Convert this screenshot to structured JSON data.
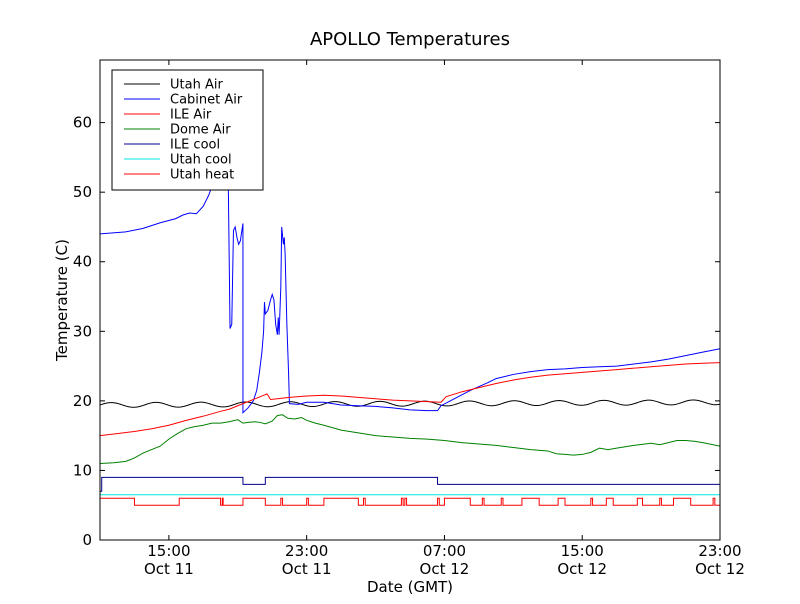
{
  "chart_data": {
    "type": "line",
    "title": "APOLLO Temperatures",
    "xlabel": "Date (GMT)",
    "ylabel": "Temperature (C)",
    "x_unit": "hours since Oct 11 11:00 GMT",
    "xlim": [
      0,
      36
    ],
    "ylim": [
      0,
      69
    ],
    "yticks": [
      0,
      10,
      20,
      30,
      40,
      50,
      60
    ],
    "xticks": [
      {
        "x": 4,
        "line1": "15:00",
        "line2": "Oct 11"
      },
      {
        "x": 12,
        "line1": "23:00",
        "line2": "Oct 11"
      },
      {
        "x": 20,
        "line1": "07:00",
        "line2": "Oct 12"
      },
      {
        "x": 28,
        "line1": "15:00",
        "line2": "Oct 12"
      },
      {
        "x": 36,
        "line1": "23:00",
        "line2": "Oct 12"
      }
    ],
    "grid": false,
    "legend_position": "top-left",
    "series": [
      {
        "name": "Utah Air",
        "color": "#000000",
        "kind": "wave",
        "base": 19.6,
        "amp": 0.35,
        "period": 2.6,
        "points": [
          [
            0,
            19.2
          ],
          [
            36,
            20.0
          ]
        ]
      },
      {
        "name": "Cabinet Air",
        "color": "#0000ff",
        "points": [
          [
            0,
            44.0
          ],
          [
            1.5,
            44.3
          ],
          [
            2.5,
            44.8
          ],
          [
            3.5,
            45.6
          ],
          [
            4.4,
            46.2
          ],
          [
            4.8,
            46.7
          ],
          [
            5.2,
            47.0
          ],
          [
            5.6,
            46.9
          ],
          [
            6.0,
            48.0
          ],
          [
            6.3,
            49.5
          ],
          [
            6.6,
            51.5
          ],
          [
            6.9,
            52.0
          ],
          [
            7.0,
            53.0
          ],
          [
            7.1,
            50.5
          ],
          [
            7.3,
            51.0
          ],
          [
            7.45,
            51.0
          ],
          [
            7.55,
            30.4
          ],
          [
            7.65,
            31.0
          ],
          [
            7.75,
            44.5
          ],
          [
            7.85,
            45.0
          ],
          [
            7.95,
            43.5
          ],
          [
            8.05,
            42.5
          ],
          [
            8.15,
            43.0
          ],
          [
            8.3,
            45.5
          ],
          [
            8.3,
            18.3
          ],
          [
            8.6,
            19.0
          ],
          [
            8.9,
            20.0
          ],
          [
            9.1,
            21.5
          ],
          [
            9.25,
            24.0
          ],
          [
            9.4,
            27.0
          ],
          [
            9.5,
            30.0
          ],
          [
            9.55,
            34.2
          ],
          [
            9.6,
            32.5
          ],
          [
            9.75,
            33.0
          ],
          [
            9.9,
            34.5
          ],
          [
            10.0,
            35.3
          ],
          [
            10.1,
            34.5
          ],
          [
            10.2,
            31.0
          ],
          [
            10.3,
            29.5
          ],
          [
            10.35,
            32.0
          ],
          [
            10.4,
            29.5
          ],
          [
            10.5,
            36.5
          ],
          [
            10.55,
            45.0
          ],
          [
            10.65,
            42.5
          ],
          [
            10.7,
            43.5
          ],
          [
            10.75,
            41.0
          ],
          [
            10.85,
            31.0
          ],
          [
            10.95,
            24.0
          ],
          [
            11.0,
            19.6
          ],
          [
            11.5,
            19.5
          ],
          [
            12.0,
            19.8
          ],
          [
            13.0,
            19.8
          ],
          [
            14.0,
            19.4
          ],
          [
            15.0,
            19.3
          ],
          [
            16.0,
            19.2
          ],
          [
            17.0,
            19.0
          ],
          [
            18.0,
            18.7
          ],
          [
            19.0,
            18.6
          ],
          [
            19.6,
            18.6
          ],
          [
            19.8,
            19.3
          ],
          [
            20.5,
            20.2
          ],
          [
            21.5,
            21.5
          ],
          [
            22.5,
            22.6
          ],
          [
            23.0,
            23.2
          ],
          [
            24.0,
            23.8
          ],
          [
            25.0,
            24.2
          ],
          [
            26.0,
            24.5
          ],
          [
            27.0,
            24.6
          ],
          [
            28.0,
            24.8
          ],
          [
            29.0,
            24.9
          ],
          [
            30.0,
            25.0
          ],
          [
            31.0,
            25.3
          ],
          [
            32.0,
            25.6
          ],
          [
            33.0,
            26.0
          ],
          [
            34.0,
            26.5
          ],
          [
            35.0,
            27.0
          ],
          [
            36.0,
            27.5
          ]
        ]
      },
      {
        "name": "ILE Air",
        "color": "#ff0000",
        "points": [
          [
            0,
            15.0
          ],
          [
            1.0,
            15.3
          ],
          [
            2.0,
            15.6
          ],
          [
            3.0,
            16.0
          ],
          [
            4.0,
            16.5
          ],
          [
            5.0,
            17.2
          ],
          [
            6.0,
            17.8
          ],
          [
            7.0,
            18.5
          ],
          [
            7.5,
            18.8
          ],
          [
            8.0,
            19.3
          ],
          [
            8.5,
            19.8
          ],
          [
            9.0,
            20.3
          ],
          [
            9.5,
            20.8
          ],
          [
            9.7,
            21.0
          ],
          [
            9.9,
            20.2
          ],
          [
            10.3,
            20.3
          ],
          [
            11.0,
            20.5
          ],
          [
            12.0,
            20.7
          ],
          [
            13.0,
            20.8
          ],
          [
            14.0,
            20.7
          ],
          [
            15.0,
            20.5
          ],
          [
            16.0,
            20.3
          ],
          [
            17.0,
            20.1
          ],
          [
            18.0,
            20.0
          ],
          [
            19.0,
            19.9
          ],
          [
            19.8,
            19.8
          ],
          [
            20.1,
            20.6
          ],
          [
            21.0,
            21.3
          ],
          [
            22.0,
            21.9
          ],
          [
            23.0,
            22.5
          ],
          [
            24.0,
            23.0
          ],
          [
            25.0,
            23.4
          ],
          [
            26.0,
            23.7
          ],
          [
            27.0,
            23.9
          ],
          [
            28.0,
            24.1
          ],
          [
            29.0,
            24.3
          ],
          [
            30.0,
            24.5
          ],
          [
            31.0,
            24.7
          ],
          [
            32.0,
            24.9
          ],
          [
            33.0,
            25.1
          ],
          [
            34.0,
            25.3
          ],
          [
            35.0,
            25.4
          ],
          [
            36.0,
            25.5
          ]
        ]
      },
      {
        "name": "Dome Air",
        "color": "#008000",
        "points": [
          [
            0,
            11.0
          ],
          [
            0.8,
            11.1
          ],
          [
            1.5,
            11.3
          ],
          [
            2.0,
            11.8
          ],
          [
            2.5,
            12.5
          ],
          [
            3.0,
            13.0
          ],
          [
            3.5,
            13.5
          ],
          [
            4.0,
            14.5
          ],
          [
            4.5,
            15.3
          ],
          [
            5.0,
            16.0
          ],
          [
            5.5,
            16.3
          ],
          [
            6.0,
            16.5
          ],
          [
            6.5,
            16.8
          ],
          [
            7.0,
            16.8
          ],
          [
            7.5,
            17.0
          ],
          [
            8.0,
            17.3
          ],
          [
            8.3,
            16.8
          ],
          [
            8.6,
            16.9
          ],
          [
            9.0,
            17.0
          ],
          [
            9.3,
            16.9
          ],
          [
            9.6,
            16.7
          ],
          [
            10.0,
            17.1
          ],
          [
            10.3,
            17.9
          ],
          [
            10.6,
            18.0
          ],
          [
            10.9,
            17.5
          ],
          [
            11.3,
            17.4
          ],
          [
            11.7,
            17.6
          ],
          [
            12.0,
            17.2
          ],
          [
            12.5,
            16.8
          ],
          [
            13.0,
            16.5
          ],
          [
            14.0,
            15.8
          ],
          [
            15.0,
            15.4
          ],
          [
            16.0,
            15.0
          ],
          [
            17.0,
            14.8
          ],
          [
            18.0,
            14.6
          ],
          [
            19.0,
            14.5
          ],
          [
            20.0,
            14.3
          ],
          [
            21.0,
            14.0
          ],
          [
            22.0,
            13.8
          ],
          [
            23.0,
            13.6
          ],
          [
            24.0,
            13.3
          ],
          [
            25.0,
            13.0
          ],
          [
            26.0,
            12.8
          ],
          [
            26.5,
            12.4
          ],
          [
            27.0,
            12.3
          ],
          [
            27.5,
            12.2
          ],
          [
            28.0,
            12.3
          ],
          [
            28.5,
            12.6
          ],
          [
            29.0,
            13.2
          ],
          [
            29.5,
            13.0
          ],
          [
            30.0,
            13.2
          ],
          [
            31.0,
            13.6
          ],
          [
            32.0,
            13.9
          ],
          [
            32.5,
            13.7
          ],
          [
            33.0,
            14.0
          ],
          [
            33.5,
            14.3
          ],
          [
            34.0,
            14.3
          ],
          [
            34.5,
            14.2
          ],
          [
            35.0,
            14.0
          ],
          [
            36.0,
            13.5
          ]
        ]
      },
      {
        "name": "ILE cool",
        "color": "#00008b",
        "points": [
          [
            0,
            7.0
          ],
          [
            0.1,
            7.0
          ],
          [
            0.1,
            9.0
          ],
          [
            7.0,
            9.0
          ],
          [
            7.0,
            9.0
          ],
          [
            8.3,
            9.0
          ],
          [
            8.3,
            8.0
          ],
          [
            8.3,
            8.0
          ],
          [
            9.6,
            8.0
          ],
          [
            9.6,
            9.0
          ],
          [
            17.5,
            9.0
          ],
          [
            17.5,
            9.0
          ],
          [
            17.5,
            9.0
          ],
          [
            17.6,
            9.0
          ],
          [
            17.6,
            9.0
          ],
          [
            17.65,
            9.0
          ],
          [
            17.65,
            9.0
          ],
          [
            19.6,
            9.0
          ],
          [
            19.6,
            8.0
          ],
          [
            36.0,
            8.0
          ]
        ]
      },
      {
        "name": "Utah cool",
        "color": "#00e5e5",
        "points": [
          [
            0,
            6.5
          ],
          [
            36,
            6.5
          ]
        ]
      },
      {
        "name": "Utah heat",
        "color": "#ff0000",
        "kind": "pulse",
        "low": 5.0,
        "high": 6.0,
        "pulses": [
          [
            0,
            2.0
          ],
          [
            4.6,
            7.0
          ],
          [
            7.1,
            7.15
          ],
          [
            8.3,
            9.6
          ],
          [
            10.5,
            10.6
          ],
          [
            12.0,
            12.1
          ],
          [
            13.0,
            15.0
          ],
          [
            15.3,
            15.4
          ],
          [
            17.5,
            17.6
          ],
          [
            17.7,
            17.8
          ],
          [
            19.6,
            19.7
          ],
          [
            20.0,
            21.5
          ],
          [
            22.2,
            22.3
          ],
          [
            23.3,
            23.4
          ],
          [
            24.5,
            25.5
          ],
          [
            26.6,
            27.0
          ],
          [
            28.5,
            28.6
          ],
          [
            29.4,
            29.8
          ],
          [
            31.2,
            31.5
          ],
          [
            32.5,
            32.6
          ],
          [
            33.3,
            34.3
          ],
          [
            35.6,
            35.7
          ]
        ]
      }
    ]
  }
}
